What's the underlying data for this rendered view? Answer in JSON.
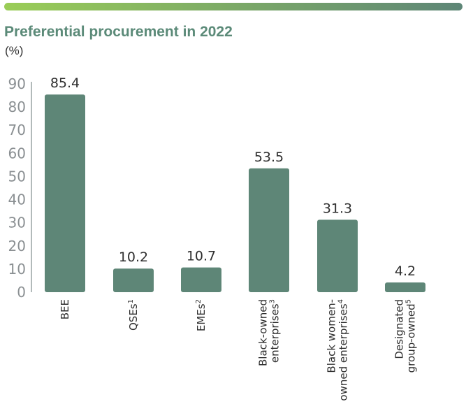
{
  "header": {
    "title": "Preferential procurement in 2022",
    "unit": "(%)"
  },
  "colors": {
    "bar": "#5e8677",
    "accent_start": "#9acd57",
    "accent_end": "#5e8677",
    "title": "#5b8a78",
    "axis": "#7f8c8d"
  },
  "chart_data": {
    "type": "bar",
    "title": "Preferential procurement in 2022",
    "ylabel": "(%)",
    "xlabel": "",
    "ylim": [
      0,
      90
    ],
    "yticks": [
      0,
      10,
      20,
      30,
      40,
      50,
      60,
      70,
      80,
      90
    ],
    "grid": false,
    "categories": [
      "BEE",
      "QSEs1",
      "EMEs2",
      "Black-owned enterprises3",
      "Black women-owned enterprises4",
      "Designated group-owned5"
    ],
    "category_lines": [
      [
        {
          "t": "BEE",
          "s": ""
        }
      ],
      [
        {
          "t": "QSEs",
          "s": "1"
        }
      ],
      [
        {
          "t": "EMEs",
          "s": "2"
        }
      ],
      [
        {
          "t": "Black-owned",
          "s": ""
        },
        {
          "t": "enterprises",
          "s": "3"
        }
      ],
      [
        {
          "t": "Black women-",
          "s": ""
        },
        {
          "t": "owned enterprises",
          "s": "4"
        }
      ],
      [
        {
          "t": "Designated",
          "s": ""
        },
        {
          "t": "group-owned",
          "s": "5"
        }
      ]
    ],
    "values": [
      85.4,
      10.2,
      10.7,
      53.5,
      31.3,
      4.2
    ],
    "value_labels": [
      "85.4",
      "10.2",
      "10.7",
      "53.5",
      "31.3",
      "4.2"
    ]
  }
}
